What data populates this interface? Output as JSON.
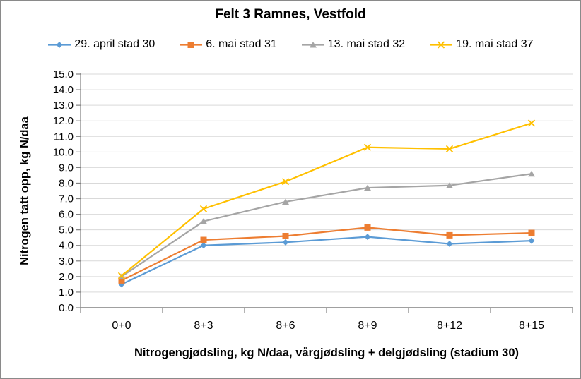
{
  "chart_data": {
    "type": "line",
    "title": "Felt 3 Ramnes, Vestfold",
    "categories": [
      "0+0",
      "8+3",
      "8+6",
      "8+9",
      "8+12",
      "8+15"
    ],
    "series": [
      {
        "name": "29. april stad 30",
        "color": "#5B9BD5",
        "marker": "diamond",
        "values": [
          1.5,
          4.0,
          4.2,
          4.55,
          4.1,
          4.3
        ]
      },
      {
        "name": "6. mai stad 31",
        "color": "#ED7D31",
        "marker": "square",
        "values": [
          1.75,
          4.35,
          4.6,
          5.15,
          4.65,
          4.8
        ]
      },
      {
        "name": "13. mai stad 32",
        "color": "#A5A5A5",
        "marker": "triangle",
        "values": [
          2.0,
          5.55,
          6.8,
          7.7,
          7.85,
          8.6
        ]
      },
      {
        "name": "19. mai stad 37",
        "color": "#FFC000",
        "marker": "x",
        "values": [
          2.05,
          6.35,
          8.1,
          10.3,
          10.2,
          11.85
        ]
      }
    ],
    "xlabel": "Nitrogengjødsling, kg N/daa, vårgjødsling + delgjødsling (stadium 30)",
    "ylabel": "Nitrogen tatt opp, kg N/daa",
    "ylim": [
      0,
      15
    ],
    "ytick_step": 1,
    "ytick_decimals": 1,
    "grid": "horizontal",
    "legend_position": "top",
    "colors": {
      "gridline": "#D9D9D9",
      "axis_line": "#808080",
      "text": "#000000"
    }
  }
}
